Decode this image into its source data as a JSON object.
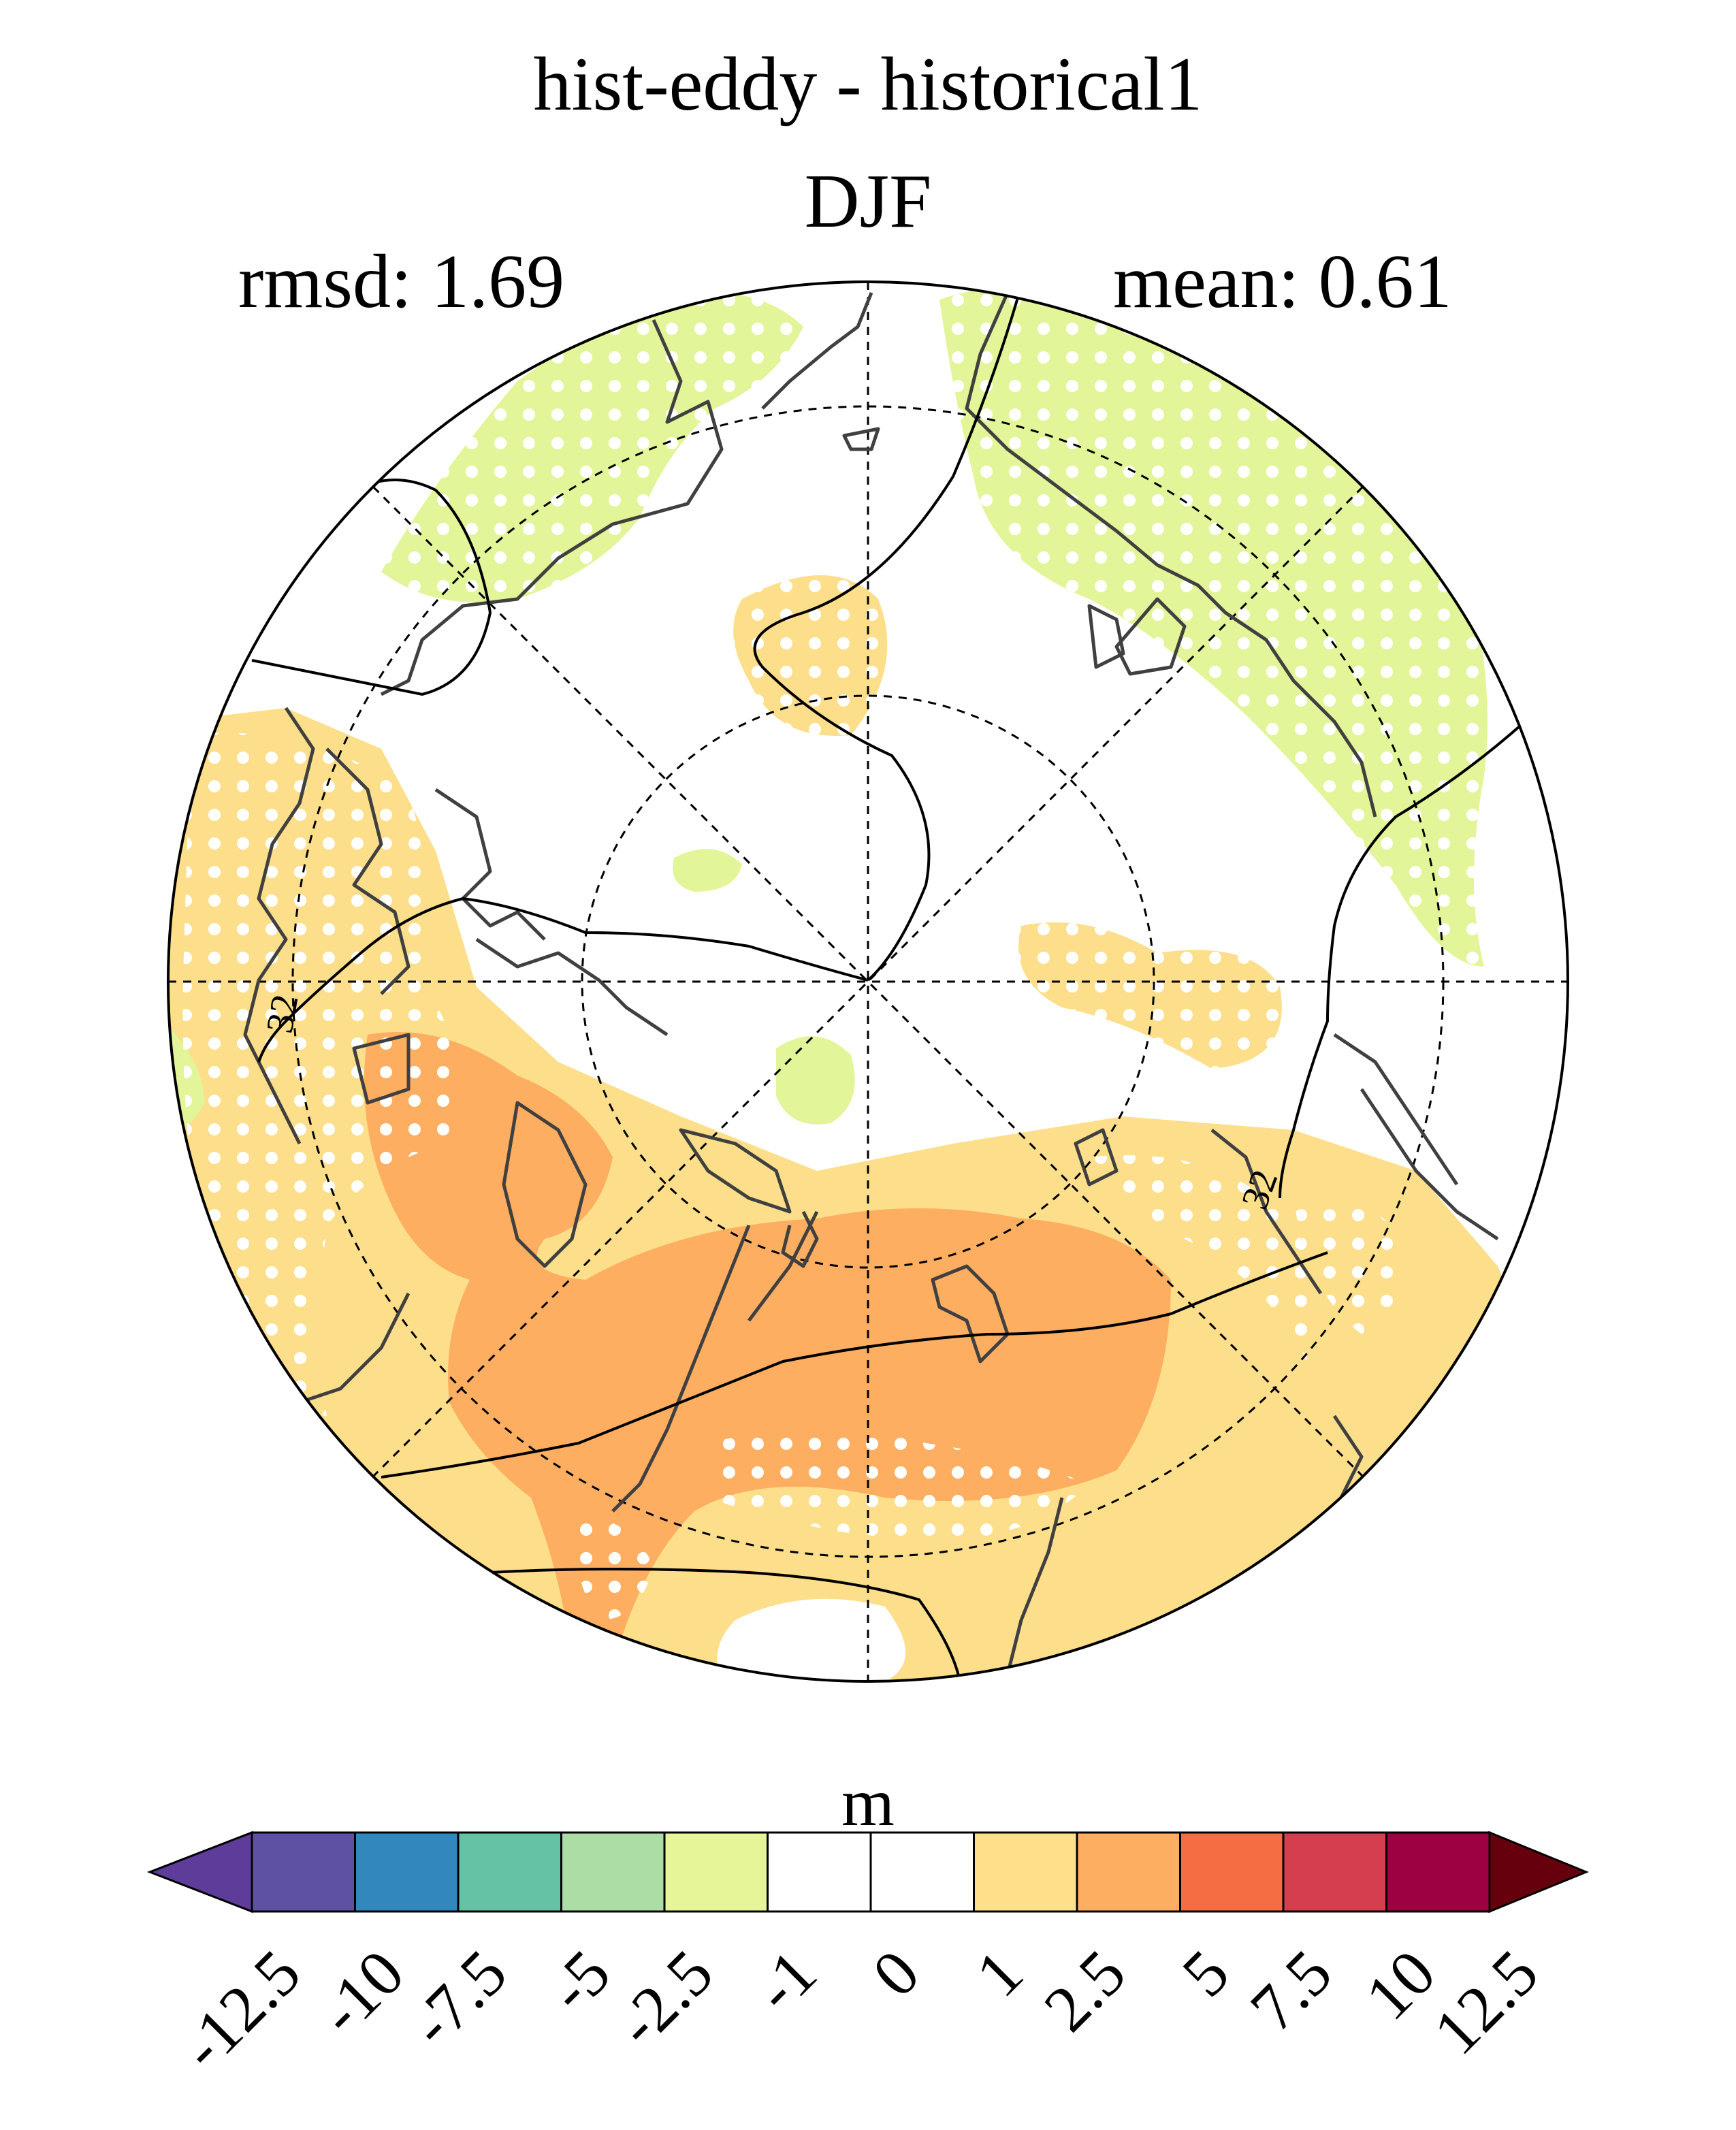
{
  "title_line1": "hist-eddy - historical1",
  "title_line2": "DJF",
  "rmsd_text": "rmsd: 1.69",
  "mean_text": "mean: 0.61",
  "map": {
    "projection": "north polar stereographic",
    "contour_label": "32",
    "stippling": "white dots mark significant regions",
    "colors": {
      "green_light": "#e3f599",
      "orange_light": "#fdde8a",
      "orange_mid": "#fdae61",
      "coast": "#404040"
    }
  },
  "colorbar": {
    "unit": "m",
    "ticks": [
      "-12.5",
      "-10",
      "-7.5",
      "-5",
      "-2.5",
      "-1",
      "0",
      "1",
      "2.5",
      "5",
      "7.5",
      "10",
      "12.5"
    ],
    "colors": [
      "#5e3c99",
      "#5e50a2",
      "#3288bd",
      "#66c2a5",
      "#abdda4",
      "#e6f598",
      "#ffffff",
      "#ffffff",
      "#fee08b",
      "#fdae61",
      "#f46d43",
      "#d53e4f",
      "#9e0142",
      "#67000d"
    ]
  }
}
